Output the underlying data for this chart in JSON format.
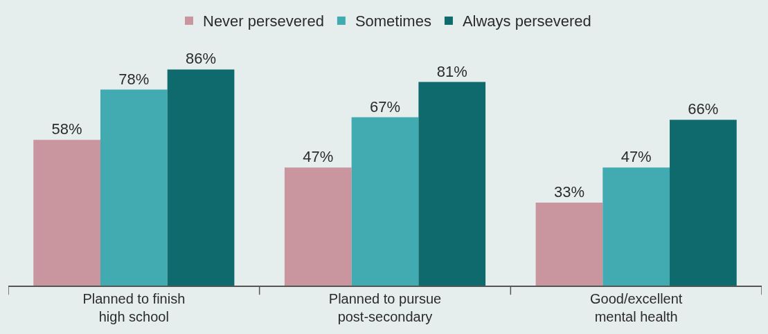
{
  "chart_data": {
    "type": "bar",
    "categories": [
      "Planned to finish high school",
      "Planned to pursue post-secondary",
      "Good/excellent mental health"
    ],
    "series": [
      {
        "name": "Never persevered",
        "color": "#c9959f",
        "values": [
          58,
          47,
          33
        ],
        "value_labels": [
          "58%",
          "47%",
          "33%"
        ]
      },
      {
        "name": "Sometimes",
        "color": "#42aab1",
        "values": [
          78,
          67,
          47
        ],
        "value_labels": [
          "78%",
          "67%",
          "47%"
        ]
      },
      {
        "name": "Always persevered",
        "color": "#0f6a6d",
        "values": [
          86,
          81,
          66
        ],
        "value_labels": [
          "86%",
          "81%",
          "66%"
        ]
      }
    ],
    "legend": "top"
  }
}
